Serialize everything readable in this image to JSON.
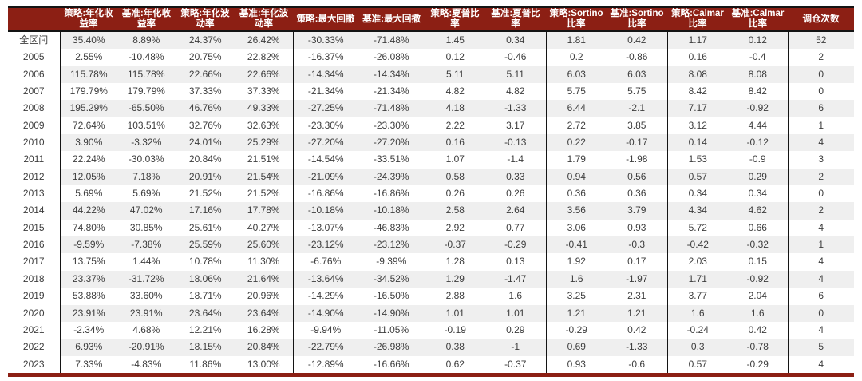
{
  "colors": {
    "header_bg": "#8c1f14",
    "header_text": "#ffffff",
    "stripe": "#efefef",
    "body_text": "#3d3d3d",
    "border": "#141414",
    "bottom_bar": "#8c1f14"
  },
  "chart_data": {
    "type": "table",
    "columns": [
      "",
      "策略:年化收益率",
      "基准:年化收益率",
      "策略:年化波动率",
      "基准:年化波动率",
      "策略:最大回撤",
      "基准:最大回撤",
      "策略:夏普比率",
      "基准:夏普比率",
      "策略:Sortino比率",
      "基准:Sortino比率",
      "策略:Calmar比率",
      "基准:Calmar比率",
      "调仓次数"
    ],
    "rows": [
      {
        "label": "全区间",
        "values": [
          "35.40%",
          "8.89%",
          "24.37%",
          "26.42%",
          "-30.33%",
          "-71.48%",
          "1.45",
          "0.34",
          "1.81",
          "0.42",
          "1.17",
          "0.12",
          "52"
        ]
      },
      {
        "label": "2005",
        "values": [
          "2.55%",
          "-10.48%",
          "20.75%",
          "22.82%",
          "-16.37%",
          "-26.08%",
          "0.12",
          "-0.46",
          "0.2",
          "-0.86",
          "0.16",
          "-0.4",
          "2"
        ]
      },
      {
        "label": "2006",
        "values": [
          "115.78%",
          "115.78%",
          "22.66%",
          "22.66%",
          "-14.34%",
          "-14.34%",
          "5.11",
          "5.11",
          "6.03",
          "6.03",
          "8.08",
          "8.08",
          "0"
        ]
      },
      {
        "label": "2007",
        "values": [
          "179.79%",
          "179.79%",
          "37.33%",
          "37.33%",
          "-21.34%",
          "-21.34%",
          "4.82",
          "4.82",
          "5.75",
          "5.75",
          "8.42",
          "8.42",
          "0"
        ]
      },
      {
        "label": "2008",
        "values": [
          "195.29%",
          "-65.50%",
          "46.76%",
          "49.33%",
          "-27.25%",
          "-71.48%",
          "4.18",
          "-1.33",
          "6.44",
          "-2.1",
          "7.17",
          "-0.92",
          "6"
        ]
      },
      {
        "label": "2009",
        "values": [
          "72.64%",
          "103.51%",
          "32.76%",
          "32.63%",
          "-23.30%",
          "-23.30%",
          "2.22",
          "3.17",
          "2.72",
          "3.85",
          "3.12",
          "4.44",
          "1"
        ]
      },
      {
        "label": "2010",
        "values": [
          "3.90%",
          "-3.32%",
          "24.01%",
          "25.29%",
          "-27.20%",
          "-27.20%",
          "0.16",
          "-0.13",
          "0.22",
          "-0.17",
          "0.14",
          "-0.12",
          "4"
        ]
      },
      {
        "label": "2011",
        "values": [
          "22.24%",
          "-30.03%",
          "20.84%",
          "21.51%",
          "-14.54%",
          "-33.51%",
          "1.07",
          "-1.4",
          "1.79",
          "-1.98",
          "1.53",
          "-0.9",
          "3"
        ]
      },
      {
        "label": "2012",
        "values": [
          "12.05%",
          "7.18%",
          "20.91%",
          "21.54%",
          "-21.09%",
          "-24.39%",
          "0.58",
          "0.33",
          "0.94",
          "0.56",
          "0.57",
          "0.29",
          "2"
        ]
      },
      {
        "label": "2013",
        "values": [
          "5.69%",
          "5.69%",
          "21.52%",
          "21.52%",
          "-16.86%",
          "-16.86%",
          "0.26",
          "0.26",
          "0.36",
          "0.36",
          "0.34",
          "0.34",
          "0"
        ]
      },
      {
        "label": "2014",
        "values": [
          "44.22%",
          "47.02%",
          "17.16%",
          "17.78%",
          "-10.18%",
          "-10.18%",
          "2.58",
          "2.64",
          "3.56",
          "3.79",
          "4.34",
          "4.62",
          "2"
        ]
      },
      {
        "label": "2015",
        "values": [
          "74.80%",
          "30.85%",
          "25.61%",
          "40.27%",
          "-13.07%",
          "-46.83%",
          "2.92",
          "0.77",
          "3.06",
          "0.93",
          "5.72",
          "0.66",
          "4"
        ]
      },
      {
        "label": "2016",
        "values": [
          "-9.59%",
          "-7.38%",
          "25.59%",
          "25.60%",
          "-23.12%",
          "-23.12%",
          "-0.37",
          "-0.29",
          "-0.41",
          "-0.3",
          "-0.42",
          "-0.32",
          "1"
        ]
      },
      {
        "label": "2017",
        "values": [
          "13.75%",
          "1.44%",
          "10.78%",
          "11.30%",
          "-6.76%",
          "-9.39%",
          "1.28",
          "0.13",
          "1.92",
          "0.17",
          "2.03",
          "0.15",
          "4"
        ]
      },
      {
        "label": "2018",
        "values": [
          "23.37%",
          "-31.72%",
          "18.06%",
          "21.64%",
          "-13.64%",
          "-34.52%",
          "1.29",
          "-1.47",
          "1.6",
          "-1.97",
          "1.71",
          "-0.92",
          "4"
        ]
      },
      {
        "label": "2019",
        "values": [
          "53.88%",
          "33.60%",
          "18.71%",
          "20.96%",
          "-14.29%",
          "-16.50%",
          "2.88",
          "1.6",
          "3.25",
          "2.31",
          "3.77",
          "2.04",
          "6"
        ]
      },
      {
        "label": "2020",
        "values": [
          "23.91%",
          "23.91%",
          "23.64%",
          "23.64%",
          "-14.90%",
          "-14.90%",
          "1.01",
          "1.01",
          "1.21",
          "1.21",
          "1.6",
          "1.6",
          "0"
        ]
      },
      {
        "label": "2021",
        "values": [
          "-2.34%",
          "4.68%",
          "12.21%",
          "16.28%",
          "-9.94%",
          "-11.05%",
          "-0.19",
          "0.29",
          "-0.29",
          "0.42",
          "-0.24",
          "0.42",
          "4"
        ]
      },
      {
        "label": "2022",
        "values": [
          "6.93%",
          "-20.91%",
          "18.15%",
          "20.84%",
          "-22.79%",
          "-26.98%",
          "0.38",
          "-1",
          "0.69",
          "-1.33",
          "0.3",
          "-0.78",
          "5"
        ]
      },
      {
        "label": "2023",
        "values": [
          "7.33%",
          "-4.83%",
          "11.86%",
          "13.00%",
          "-12.89%",
          "-16.66%",
          "0.62",
          "-0.37",
          "0.93",
          "-0.6",
          "0.57",
          "-0.29",
          "4"
        ]
      }
    ]
  }
}
